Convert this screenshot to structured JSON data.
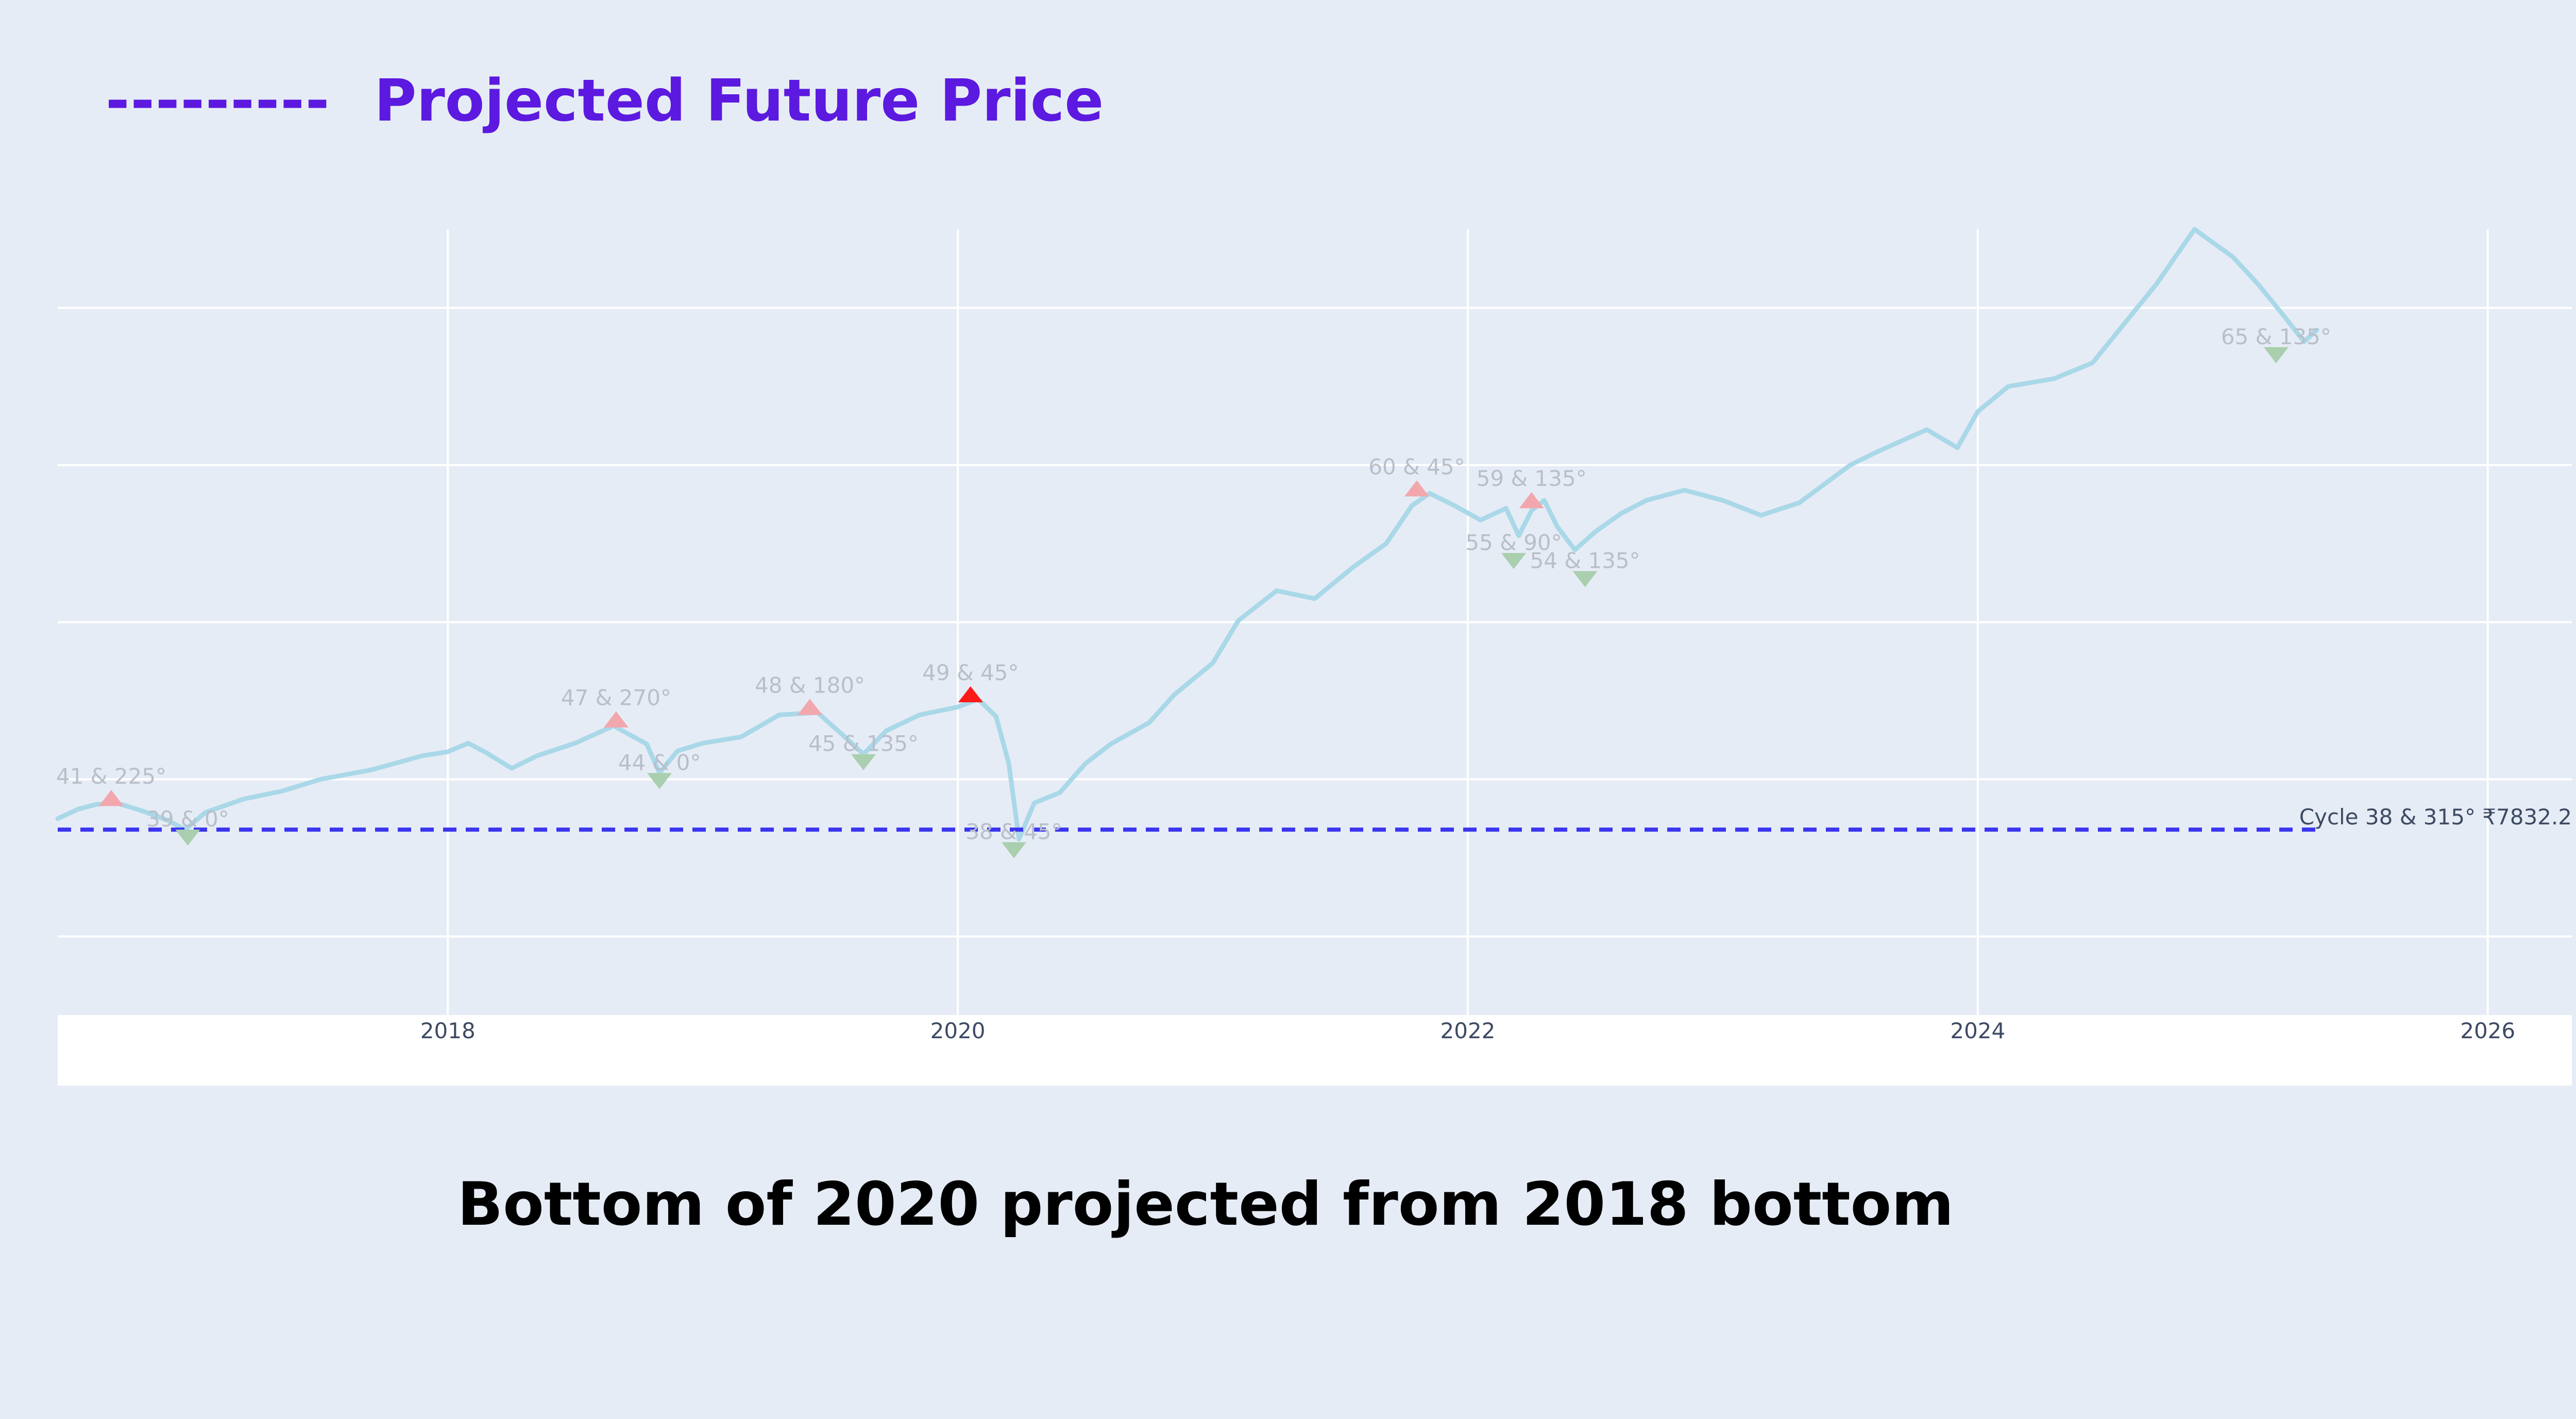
{
  "legend": {
    "dash": "---------",
    "label": "Projected Future Price"
  },
  "caption": "Bottom of 2020 projected from 2018 bottom",
  "colors": {
    "background": "#e6ecf5",
    "legend_text": "#5c19e0",
    "price_line": "#a9d8e8",
    "projection_line": "#3b35f0",
    "peak_marker": "#f2a7ad",
    "peak_marker_highlight": "#ff1a1a",
    "trough_marker": "#a9cfae"
  },
  "chart_data": {
    "type": "line",
    "x_axis": {
      "ticks": [
        2018,
        2020,
        2022,
        2024,
        2026
      ],
      "range": [
        2016.47,
        2026.33
      ]
    },
    "y_axis": {
      "range": [
        0,
        1000
      ],
      "tick_labels_shown": false,
      "grid": true
    },
    "series": [
      {
        "values": [
          [
            2016.47,
            250
          ],
          [
            2016.55,
            262
          ],
          [
            2016.62,
            268
          ],
          [
            2016.7,
            270
          ],
          [
            2016.8,
            260
          ],
          [
            2016.9,
            248
          ],
          [
            2016.97,
            236
          ],
          [
            2017.05,
            258
          ],
          [
            2017.2,
            275
          ],
          [
            2017.35,
            285
          ],
          [
            2017.5,
            300
          ],
          [
            2017.7,
            312
          ],
          [
            2017.9,
            330
          ],
          [
            2018.0,
            335
          ],
          [
            2018.08,
            346
          ],
          [
            2018.15,
            334
          ],
          [
            2018.25,
            314
          ],
          [
            2018.35,
            330
          ],
          [
            2018.5,
            346
          ],
          [
            2018.65,
            368
          ],
          [
            2018.78,
            345
          ],
          [
            2018.83,
            308
          ],
          [
            2018.9,
            336
          ],
          [
            2019.0,
            346
          ],
          [
            2019.15,
            354
          ],
          [
            2019.3,
            382
          ],
          [
            2019.45,
            385
          ],
          [
            2019.55,
            356
          ],
          [
            2019.63,
            332
          ],
          [
            2019.72,
            362
          ],
          [
            2019.85,
            382
          ],
          [
            2020.0,
            392
          ],
          [
            2020.08,
            402
          ],
          [
            2020.15,
            380
          ],
          [
            2020.2,
            320
          ],
          [
            2020.24,
            224
          ],
          [
            2020.3,
            270
          ],
          [
            2020.4,
            283
          ],
          [
            2020.5,
            320
          ],
          [
            2020.6,
            345
          ],
          [
            2020.75,
            372
          ],
          [
            2020.85,
            408
          ],
          [
            2021.0,
            448
          ],
          [
            2021.1,
            502
          ],
          [
            2021.25,
            540
          ],
          [
            2021.4,
            530
          ],
          [
            2021.55,
            570
          ],
          [
            2021.68,
            600
          ],
          [
            2021.78,
            648
          ],
          [
            2021.85,
            664
          ],
          [
            2021.95,
            648
          ],
          [
            2022.05,
            630
          ],
          [
            2022.15,
            645
          ],
          [
            2022.2,
            610
          ],
          [
            2022.25,
            642
          ],
          [
            2022.3,
            655
          ],
          [
            2022.35,
            622
          ],
          [
            2022.42,
            592
          ],
          [
            2022.5,
            615
          ],
          [
            2022.6,
            638
          ],
          [
            2022.7,
            655
          ],
          [
            2022.85,
            668
          ],
          [
            2023.0,
            655
          ],
          [
            2023.15,
            636
          ],
          [
            2023.3,
            652
          ],
          [
            2023.5,
            700
          ],
          [
            2023.6,
            716
          ],
          [
            2023.8,
            745
          ],
          [
            2023.92,
            722
          ],
          [
            2024.0,
            768
          ],
          [
            2024.12,
            800
          ],
          [
            2024.3,
            810
          ],
          [
            2024.45,
            830
          ],
          [
            2024.55,
            870
          ],
          [
            2024.7,
            930
          ],
          [
            2024.85,
            1000
          ],
          [
            2025.0,
            965
          ],
          [
            2025.1,
            930
          ],
          [
            2025.2,
            890
          ],
          [
            2025.28,
            857
          ],
          [
            2025.33,
            872
          ]
        ]
      },
      {
        "type": "dashed",
        "x_range": [
          2016.47,
          2025.33
        ],
        "y": 236
      }
    ],
    "annotations": [
      {
        "x": 2016.68,
        "y": 266,
        "label": "41 & 225°",
        "kind": "peak"
      },
      {
        "x": 2016.98,
        "y": 236,
        "label": "39 & 0°",
        "kind": "trough"
      },
      {
        "x": 2018.66,
        "y": 366,
        "label": "47 & 270°",
        "kind": "peak"
      },
      {
        "x": 2018.83,
        "y": 308,
        "label": "44 & 0°",
        "kind": "trough"
      },
      {
        "x": 2019.42,
        "y": 382,
        "label": "48 & 180°",
        "kind": "peak"
      },
      {
        "x": 2019.63,
        "y": 332,
        "label": "45 & 135°",
        "kind": "trough"
      },
      {
        "x": 2020.05,
        "y": 398,
        "label": "49 & 45°",
        "kind": "peak-highlight"
      },
      {
        "x": 2020.22,
        "y": 220,
        "label": "38 & 45°",
        "kind": "trough"
      },
      {
        "x": 2021.8,
        "y": 660,
        "label": "60 & 45°",
        "kind": "peak"
      },
      {
        "x": 2022.25,
        "y": 645,
        "label": "59 & 135°",
        "kind": "peak"
      },
      {
        "x": 2022.18,
        "y": 588,
        "label": "55 & 90°",
        "kind": "trough"
      },
      {
        "x": 2022.46,
        "y": 565,
        "label": "54 & 135°",
        "kind": "trough"
      },
      {
        "x": 2025.17,
        "y": 850,
        "label": "65 & 135°",
        "kind": "trough"
      }
    ],
    "cycle_label": "Cycle 38 & 315° ₹7832.2"
  }
}
